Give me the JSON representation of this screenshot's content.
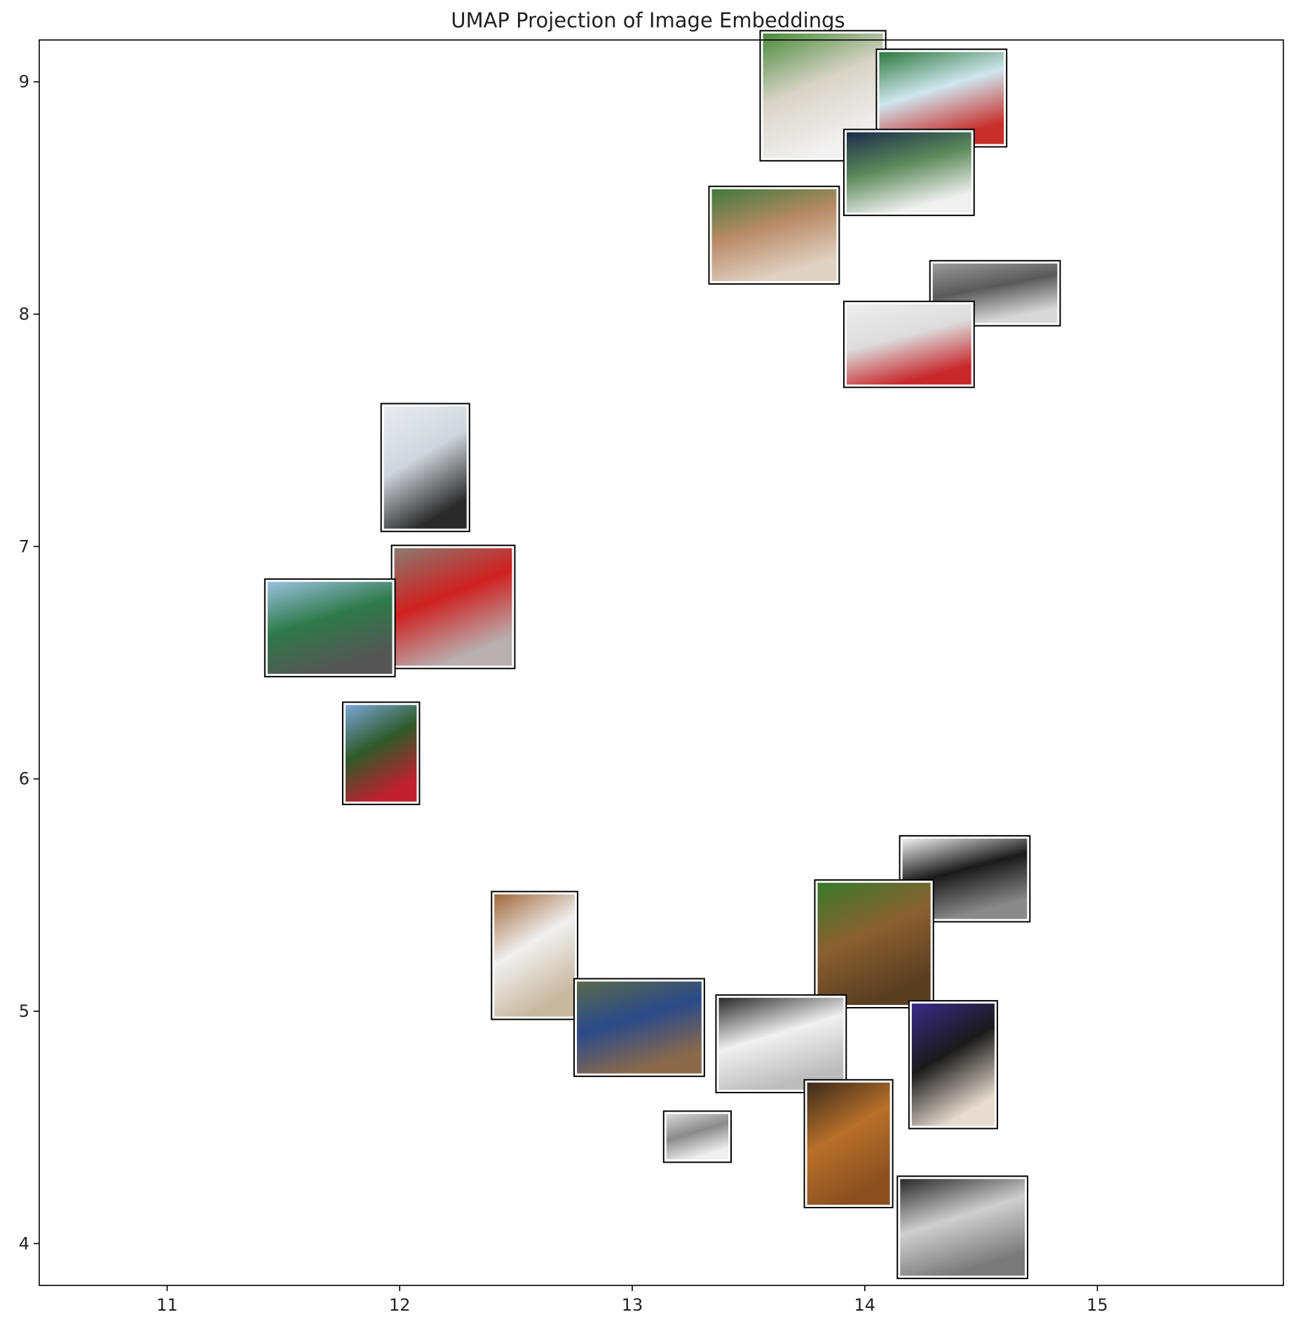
{
  "chart_data": {
    "type": "scatter",
    "title": "UMAP Projection of Image Embeddings",
    "xlabel": "",
    "ylabel": "",
    "xlim": [
      10.45,
      15.8
    ],
    "ylim": [
      3.82,
      9.18
    ],
    "xticks": [
      11,
      12,
      13,
      14,
      15
    ],
    "yticks": [
      4,
      5,
      6,
      7,
      8,
      9
    ],
    "grid": false,
    "points": [
      {
        "x": 13.82,
        "y": 8.94,
        "w": 0.54,
        "h": 0.56,
        "icon": "baseball-runner-photo",
        "colors": [
          "#4a8a3a",
          "#d9d4c8",
          "#f2f2f2"
        ]
      },
      {
        "x": 14.33,
        "y": 8.93,
        "w": 0.56,
        "h": 0.42,
        "icon": "kids-group-photo",
        "colors": [
          "#2e7a3e",
          "#cfe6ef",
          "#c8302c"
        ]
      },
      {
        "x": 14.19,
        "y": 8.61,
        "w": 0.56,
        "h": 0.37,
        "icon": "tennis-player-photo",
        "colors": [
          "#1c2c4a",
          "#5c8a5a",
          "#f0f0f0"
        ]
      },
      {
        "x": 13.61,
        "y": 8.34,
        "w": 0.56,
        "h": 0.42,
        "icon": "baseball-field-photo",
        "colors": [
          "#3f7a3c",
          "#b98a66",
          "#e0d2c2"
        ]
      },
      {
        "x": 14.56,
        "y": 8.09,
        "w": 0.56,
        "h": 0.28,
        "icon": "paddleboarder-photo",
        "colors": [
          "#9a9a9a",
          "#5a5a5a",
          "#d8d8d8"
        ]
      },
      {
        "x": 14.19,
        "y": 7.87,
        "w": 0.56,
        "h": 0.37,
        "icon": "skier-photo",
        "colors": [
          "#eeeeee",
          "#dcdcdc",
          "#c8282c"
        ]
      },
      {
        "x": 12.11,
        "y": 7.34,
        "w": 0.38,
        "h": 0.55,
        "icon": "bridge-airplanes-photo",
        "colors": [
          "#e8ecf0",
          "#d0d6dc",
          "#2a2a2a"
        ]
      },
      {
        "x": 12.23,
        "y": 6.74,
        "w": 0.53,
        "h": 0.53,
        "icon": "red-double-decker-bus-photo",
        "colors": [
          "#8a7a70",
          "#d02020",
          "#b8b0b0"
        ]
      },
      {
        "x": 11.7,
        "y": 6.65,
        "w": 0.56,
        "h": 0.42,
        "icon": "highway-signs-photo",
        "colors": [
          "#9ac0de",
          "#2e7a4a",
          "#555555"
        ]
      },
      {
        "x": 11.92,
        "y": 6.11,
        "w": 0.33,
        "h": 0.44,
        "icon": "stop-sign-photo",
        "colors": [
          "#7aa6d8",
          "#2e5a2a",
          "#c02030"
        ]
      },
      {
        "x": 14.43,
        "y": 5.57,
        "w": 0.56,
        "h": 0.37,
        "icon": "zebra-photo",
        "colors": [
          "#f0f0f0",
          "#1a1a1a",
          "#8a8a8a"
        ]
      },
      {
        "x": 12.58,
        "y": 5.24,
        "w": 0.37,
        "h": 0.55,
        "icon": "kitchen-photo",
        "colors": [
          "#a0683a",
          "#f0f0f0",
          "#c8b8a0"
        ]
      },
      {
        "x": 14.04,
        "y": 5.29,
        "w": 0.51,
        "h": 0.55,
        "icon": "brown-bear-photo",
        "colors": [
          "#3a7a2a",
          "#8a6030",
          "#5a3e22"
        ]
      },
      {
        "x": 13.03,
        "y": 4.93,
        "w": 0.56,
        "h": 0.42,
        "icon": "bedroom-photo",
        "colors": [
          "#5a6a4a",
          "#2a4a8a",
          "#8a6a4a"
        ]
      },
      {
        "x": 13.64,
        "y": 4.86,
        "w": 0.56,
        "h": 0.42,
        "icon": "cat-on-laptop-photo",
        "colors": [
          "#2a2a2a",
          "#f0f0f0",
          "#bcbcbc"
        ]
      },
      {
        "x": 14.38,
        "y": 4.77,
        "w": 0.38,
        "h": 0.55,
        "icon": "woman-phone-photo",
        "colors": [
          "#3a2a8a",
          "#1a1a1a",
          "#e8dcd0"
        ]
      },
      {
        "x": 13.28,
        "y": 4.46,
        "w": 0.29,
        "h": 0.22,
        "icon": "computer-desk-photo",
        "colors": [
          "#d8d8d8",
          "#8a8a8a",
          "#f0f0f0"
        ]
      },
      {
        "x": 13.93,
        "y": 4.43,
        "w": 0.38,
        "h": 0.55,
        "icon": "teddy-bears-photo",
        "colors": [
          "#3a2a1a",
          "#b8702a",
          "#8a5020"
        ]
      },
      {
        "x": 14.42,
        "y": 4.07,
        "w": 0.56,
        "h": 0.44,
        "icon": "sandwich-plate-photo",
        "colors": [
          "#2a2a2a",
          "#cfcfcf",
          "#7a7a7a"
        ]
      }
    ]
  }
}
